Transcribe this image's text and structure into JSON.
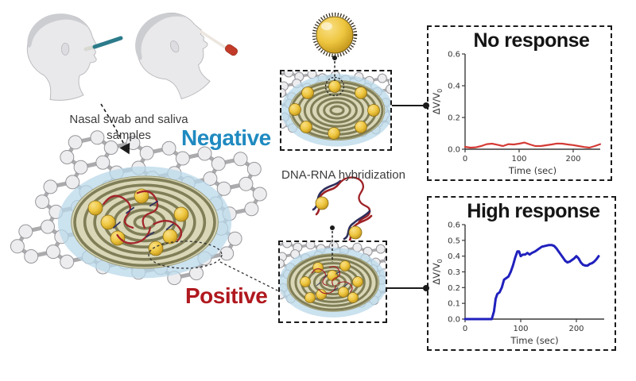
{
  "figure": {
    "sample_caption": "Nasal swab and saliva\nsamples",
    "negative_label": "Negative",
    "positive_label": "Positive",
    "hybridization_label": "DNA-RNA hybridization"
  },
  "colors": {
    "negative_blue": "#1f8ac0",
    "positive_red": "#b0191f",
    "no_response_line": "#d43a35",
    "high_response_line": "#2020bd",
    "gold_nanoparticle": "#eec63f",
    "spiral_coil": "#75744c",
    "graphene_atom": "#ededef",
    "dashed_border": "#1b1b1b"
  },
  "icons": {
    "saliva_swab_head": "person-profile-swab-in-mouth",
    "nasal_swab_head": "person-profile-swab-in-nose",
    "gold_nanoparticle": "functionalized-gold-sphere",
    "graphene_sheet": "hexagonal-carbon-lattice",
    "negative_sensor": "spiral-coil-with-gold-nanoparticles",
    "positive_sensor": "spiral-coil-with-gold-nanoparticles-and-bound-rna",
    "dna_rna_hybrid": "double-helix-segments-with-gold-nanoparticles"
  },
  "chart_data": [
    {
      "id": "no-response",
      "type": "line",
      "title": "No response",
      "xlabel": "Time (sec)",
      "ylabel": "ΔV/V₀",
      "xlim": [
        0,
        250
      ],
      "ylim": [
        0,
        0.6
      ],
      "xticks": [
        0,
        100,
        200
      ],
      "yticks": [
        0.0,
        0.2,
        0.4,
        0.6
      ],
      "grid": false,
      "legend": "none",
      "line_color": "#d43a35",
      "x": [
        0,
        10,
        20,
        30,
        40,
        50,
        60,
        70,
        80,
        90,
        100,
        110,
        120,
        130,
        140,
        150,
        160,
        170,
        180,
        190,
        200,
        210,
        220,
        230,
        240,
        250
      ],
      "y": [
        0.015,
        0.01,
        0.012,
        0.02,
        0.032,
        0.035,
        0.028,
        0.02,
        0.032,
        0.03,
        0.035,
        0.042,
        0.03,
        0.02,
        0.02,
        0.025,
        0.03,
        0.036,
        0.035,
        0.03,
        0.026,
        0.02,
        0.014,
        0.01,
        0.02,
        0.032
      ]
    },
    {
      "id": "high-response",
      "type": "line",
      "title": "High response",
      "xlabel": "Time (sec)",
      "ylabel": "ΔV/V₀",
      "xlim": [
        0,
        250
      ],
      "ylim": [
        0,
        0.6
      ],
      "xticks": [
        0,
        100,
        200
      ],
      "yticks": [
        0.0,
        0.1,
        0.2,
        0.3,
        0.4,
        0.5,
        0.6
      ],
      "grid": false,
      "legend": "none",
      "line_color": "#2020bd",
      "x": [
        0,
        10,
        20,
        30,
        40,
        48,
        52,
        55,
        58,
        62,
        66,
        70,
        74,
        78,
        82,
        86,
        90,
        94,
        97,
        100,
        104,
        108,
        112,
        116,
        120,
        126,
        132,
        138,
        144,
        150,
        156,
        160,
        164,
        168,
        172,
        176,
        180,
        184,
        188,
        192,
        196,
        200,
        204,
        208,
        212,
        216,
        220,
        224,
        228,
        232,
        236,
        240
      ],
      "y": [
        0,
        0,
        0,
        0,
        0,
        0,
        0.05,
        0.13,
        0.16,
        0.17,
        0.2,
        0.25,
        0.26,
        0.27,
        0.3,
        0.34,
        0.39,
        0.43,
        0.43,
        0.4,
        0.41,
        0.41,
        0.42,
        0.41,
        0.42,
        0.43,
        0.445,
        0.46,
        0.465,
        0.47,
        0.47,
        0.465,
        0.45,
        0.43,
        0.41,
        0.39,
        0.37,
        0.36,
        0.365,
        0.375,
        0.385,
        0.4,
        0.385,
        0.36,
        0.345,
        0.34,
        0.34,
        0.35,
        0.355,
        0.365,
        0.38,
        0.4
      ]
    }
  ]
}
